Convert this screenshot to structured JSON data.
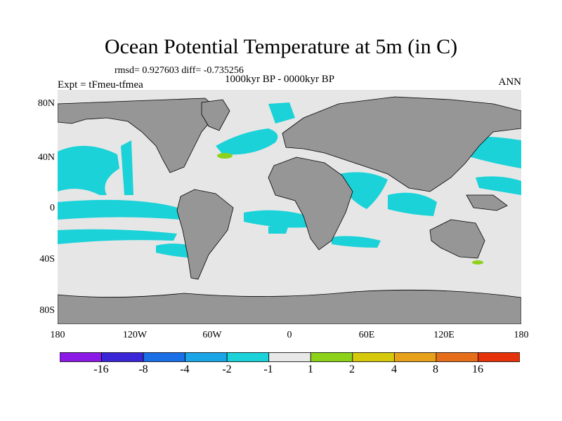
{
  "title": "Ocean Potential Temperature at 5m (in C)",
  "stats": "rmsd= 0.927603 diff= -0.735256",
  "experiment": "Expt = tFmeu-tfmea",
  "period": "1000kyr BP - 0000kyr BP",
  "season": "ANN",
  "axes": {
    "y_ticks": [
      "80N",
      "40N",
      "0",
      "40S",
      "80S"
    ],
    "x_ticks": [
      "180",
      "120W",
      "60W",
      "0",
      "60E",
      "120E",
      "180"
    ]
  },
  "legend": {
    "colors": [
      "#8c1ae6",
      "#3a26d6",
      "#1a6ee6",
      "#1aa6e6",
      "#1ad2d8",
      "#e8e8e8",
      "#8cd21a",
      "#d6c80a",
      "#e6a01a",
      "#e66e1a",
      "#e6320a"
    ],
    "labels": [
      "-16",
      "-8",
      "-4",
      "-2",
      "-1",
      "1",
      "2",
      "4",
      "8",
      "16"
    ]
  },
  "map_colors": {
    "ocean_neutral": "#e6e6e6",
    "land": "#969696",
    "cool_anomaly": "#1ad2d8",
    "strong_cool": "#1a6ee6",
    "warm_anomaly": "#8cd21a"
  }
}
